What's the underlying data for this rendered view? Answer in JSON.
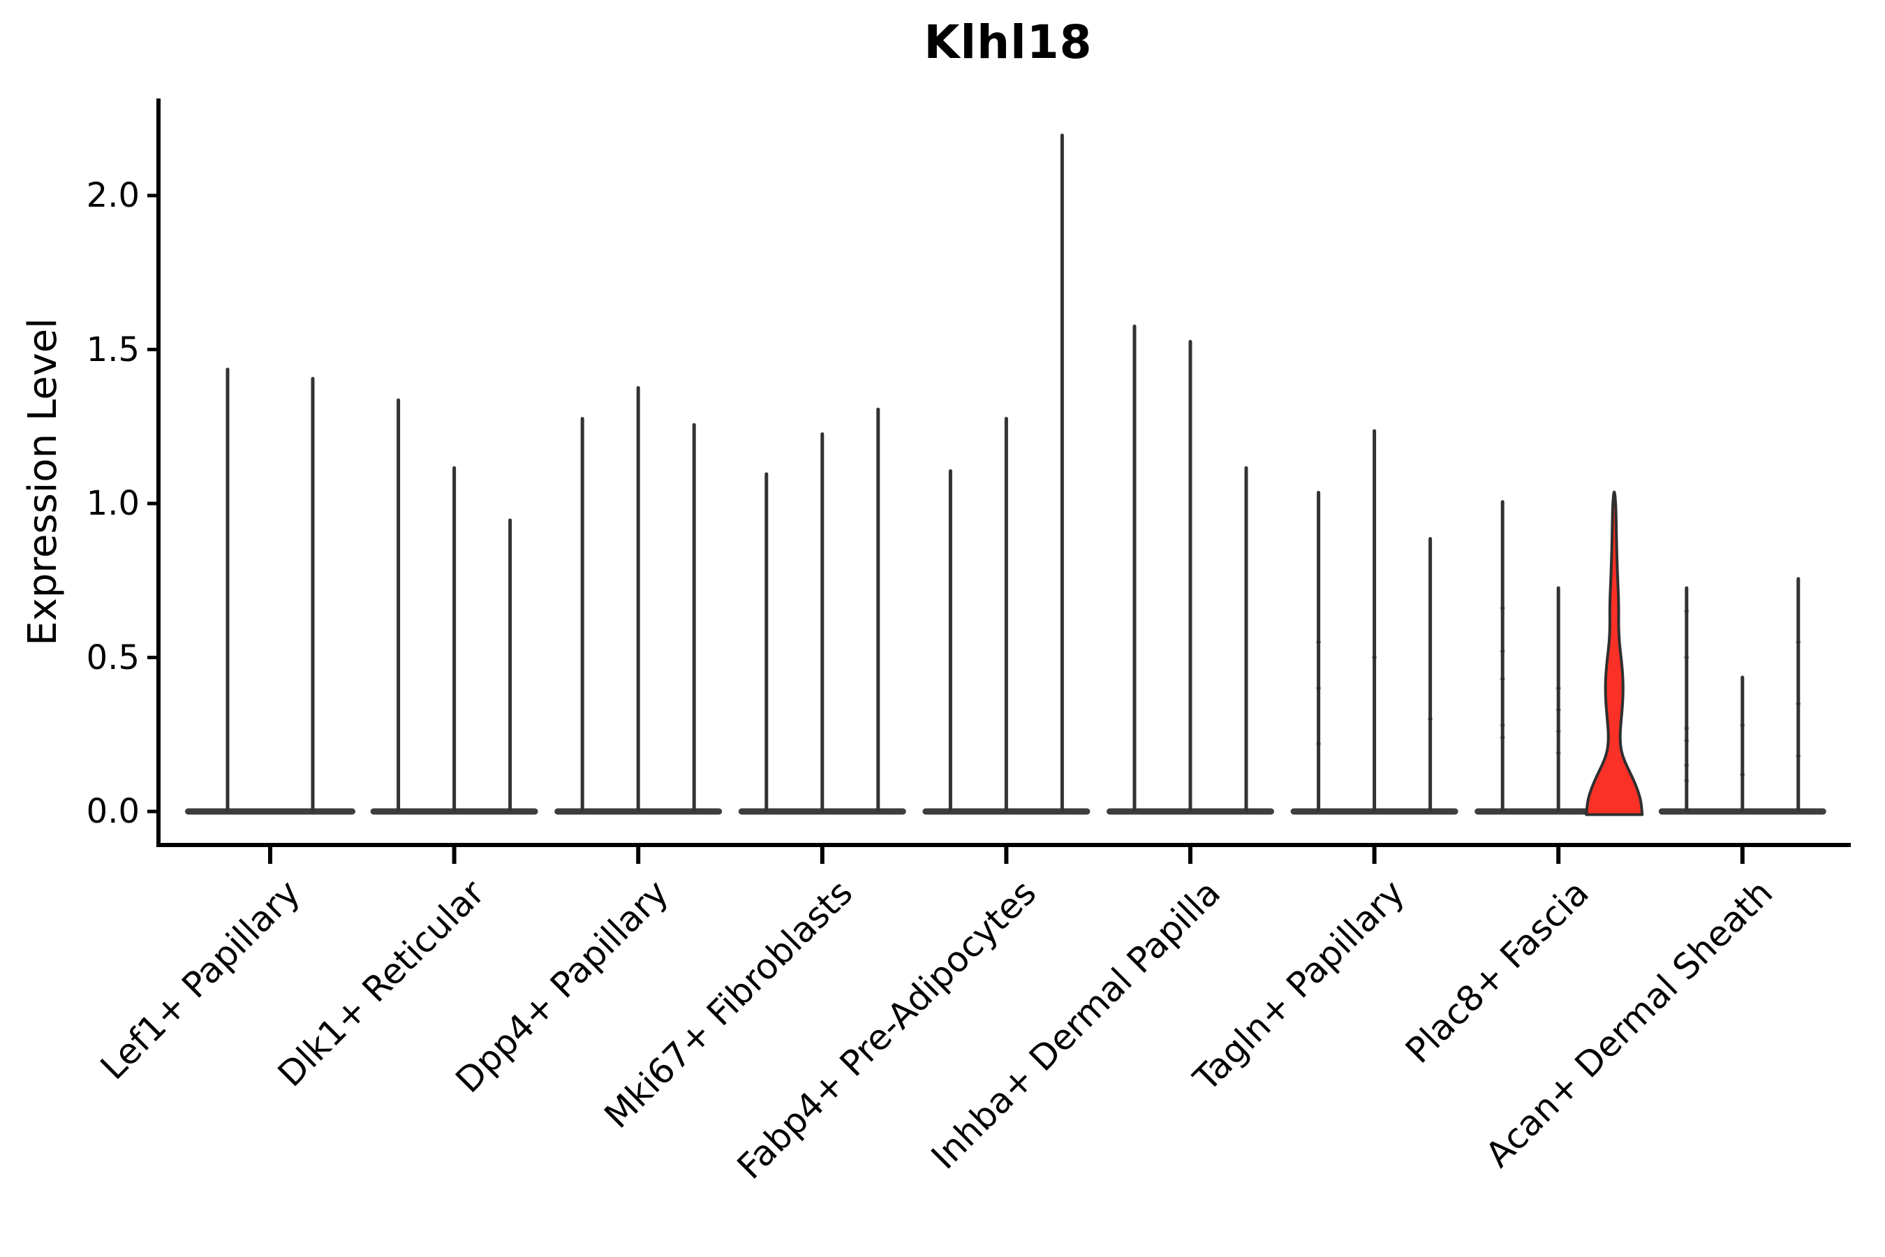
{
  "title": "Klhl18",
  "axes": {
    "y": {
      "label": "Expression Level"
    },
    "x": {
      "label": ""
    }
  },
  "chart_data": {
    "type": "violin",
    "title": "Klhl18",
    "xlabel": "",
    "ylabel": "Expression Level",
    "ylim": [
      0,
      2.32
    ],
    "yticks": [
      0.0,
      0.5,
      1.0,
      1.5,
      2.0
    ],
    "ytick_labels": [
      "0.0",
      "0.5",
      "1.0",
      "1.5",
      "2.0"
    ],
    "grid": false,
    "legend": false,
    "categories": [
      "Lef1+ Papillary",
      "Dlk1+ Reticular",
      "Dpp4+ Papillary",
      "Mki67+ Fibroblasts",
      "Fabp4+ Pre-Adipocytes",
      "Inhba+ Dermal Papilla",
      "Tagln+ Papillary",
      "Plac8+ Fascia",
      "Acan+ Dermal Sheath"
    ],
    "groups": [
      {
        "category": "Lef1+ Papillary",
        "violins": [
          {
            "peak": 1.44
          },
          {
            "peak": 1.41
          }
        ]
      },
      {
        "category": "Dlk1+ Reticular",
        "violins": [
          {
            "peak": 1.34
          },
          {
            "peak": 1.12
          },
          {
            "peak": 0.95
          }
        ]
      },
      {
        "category": "Dpp4+ Papillary",
        "violins": [
          {
            "peak": 1.28
          },
          {
            "peak": 1.38
          },
          {
            "peak": 1.26
          }
        ]
      },
      {
        "category": "Mki67+ Fibroblasts",
        "violins": [
          {
            "peak": 1.1
          },
          {
            "peak": 1.23
          },
          {
            "peak": 1.31
          }
        ]
      },
      {
        "category": "Fabp4+ Pre-Adipocytes",
        "violins": [
          {
            "peak": 1.11
          },
          {
            "peak": 1.28
          },
          {
            "peak": 2.2
          }
        ]
      },
      {
        "category": "Inhba+ Dermal Papilla",
        "violins": [
          {
            "peak": 1.58
          },
          {
            "peak": 1.53
          },
          {
            "peak": 1.12
          }
        ]
      },
      {
        "category": "Tagln+ Papillary",
        "violins": [
          {
            "peak": 1.04,
            "points": [
              0.55,
              0.4,
              0.22
            ]
          },
          {
            "peak": 1.24,
            "points": [
              0.5
            ]
          },
          {
            "peak": 0.89,
            "points": [
              0.3
            ]
          }
        ]
      },
      {
        "category": "Plac8+ Fascia",
        "violins": [
          {
            "peak": 1.01,
            "points": [
              0.66,
              0.52,
              0.43,
              0.28,
              0.24
            ]
          },
          {
            "peak": 0.73,
            "points": [
              0.4,
              0.33,
              0.26,
              0.19
            ]
          },
          {
            "peak": 1.05,
            "highlight": true,
            "profile": [
              [
                0.0,
                40.0
              ],
              [
                0.03,
                38.5
              ],
              [
                0.06,
                35.0
              ],
              [
                0.09,
                30.0
              ],
              [
                0.12,
                24.0
              ],
              [
                0.15,
                17.5
              ],
              [
                0.18,
                12.0
              ],
              [
                0.21,
                9.0
              ],
              [
                0.25,
                8.2
              ],
              [
                0.3,
                10.0
              ],
              [
                0.35,
                12.0
              ],
              [
                0.4,
                12.8
              ],
              [
                0.45,
                12.0
              ],
              [
                0.5,
                9.8
              ],
              [
                0.55,
                7.2
              ],
              [
                0.6,
                6.2
              ],
              [
                0.65,
                6.4
              ],
              [
                0.7,
                6.0
              ],
              [
                0.75,
                5.0
              ],
              [
                0.8,
                4.2
              ],
              [
                0.86,
                3.4
              ],
              [
                0.93,
                2.8
              ],
              [
                1.0,
                2.2
              ],
              [
                1.05,
                0.1
              ]
            ]
          }
        ]
      },
      {
        "category": "Acan+ Dermal Sheath",
        "violins": [
          {
            "peak": 0.73,
            "points": [
              0.65,
              0.5,
              0.27,
              0.23,
              0.15,
              0.1
            ]
          },
          {
            "peak": 0.44,
            "points": [
              0.28,
              0.12
            ]
          },
          {
            "peak": 0.76,
            "points": [
              0.55,
              0.35,
              0.18
            ]
          }
        ]
      }
    ],
    "colors": {
      "highlight_fill": "#fb3026",
      "violin_stroke": "#333333",
      "baseline_fill": "#3d3d3d",
      "axis": "#000000",
      "background": "#ffffff"
    }
  }
}
